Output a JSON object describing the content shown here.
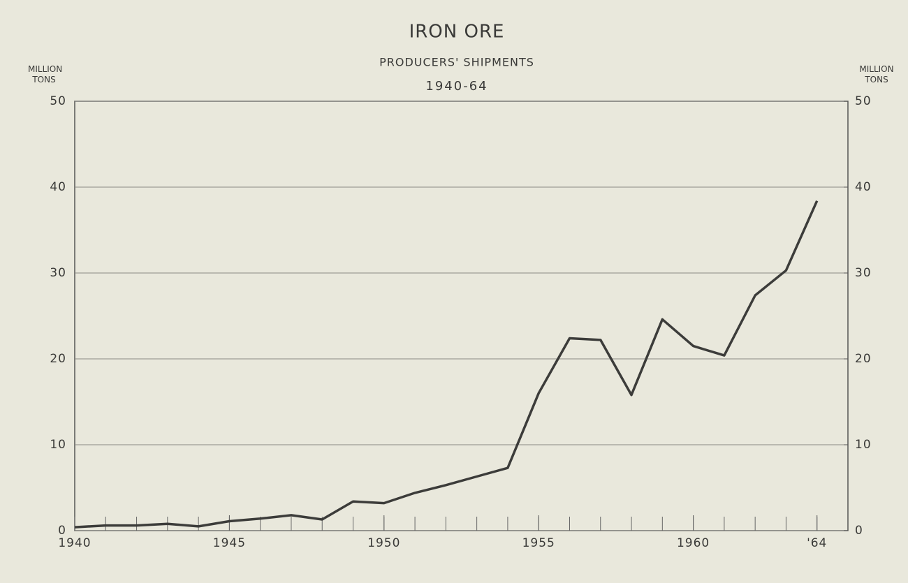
{
  "chart_data": {
    "type": "line",
    "title": "IRON ORE",
    "subtitle": "PRODUCERS' SHIPMENTS",
    "period": "1940-64",
    "y_label": "MILLION TONS",
    "y2_label": "MILLION TONS",
    "x": [
      1940,
      1941,
      1942,
      1943,
      1944,
      1945,
      1946,
      1947,
      1948,
      1949,
      1950,
      1951,
      1952,
      1953,
      1954,
      1955,
      1956,
      1957,
      1958,
      1959,
      1960,
      1961,
      1962,
      1963,
      1964
    ],
    "series": [
      {
        "name": "Producers' shipments",
        "color": "#3c3c3a",
        "values": [
          0.4,
          0.6,
          0.6,
          0.8,
          0.5,
          1.1,
          1.4,
          1.8,
          1.3,
          3.4,
          3.2,
          4.4,
          5.3,
          6.3,
          7.3,
          16.0,
          22.4,
          22.2,
          15.8,
          24.6,
          21.5,
          20.4,
          27.4,
          30.3,
          38.4
        ]
      }
    ],
    "xlim": [
      1940,
      1965
    ],
    "xticks": [
      1940,
      1945,
      1950,
      1955,
      1960,
      {
        "value": 1964,
        "label": "'64"
      }
    ],
    "ylim": [
      0,
      50
    ],
    "yticks": [
      0,
      10,
      20,
      30,
      40,
      50
    ],
    "y2lim": [
      0,
      50
    ],
    "y2ticks": [
      0,
      10,
      20,
      30,
      40,
      50
    ],
    "grid": true
  }
}
